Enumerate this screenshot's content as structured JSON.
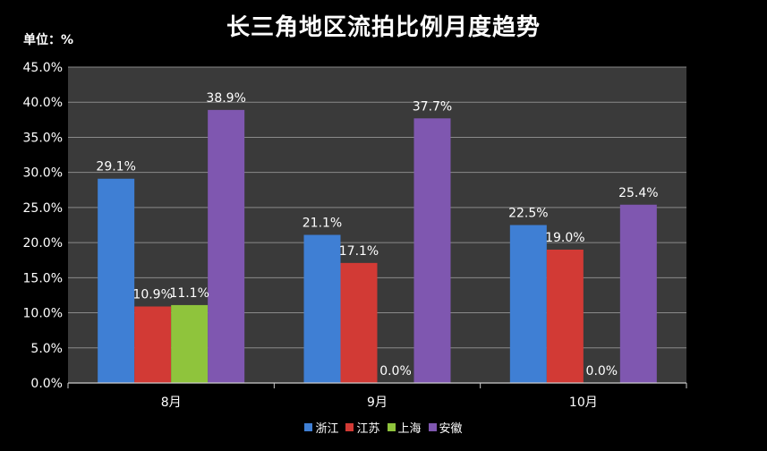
{
  "chart_data": {
    "type": "bar",
    "title": "长三角地区流拍比例月度趋势",
    "unit_label": "单位：%",
    "categories": [
      "8月",
      "9月",
      "10月"
    ],
    "series": [
      {
        "name": "浙江",
        "color": "#3f7fd4",
        "values": [
          29.1,
          21.1,
          22.5
        ],
        "labels": [
          "29.1%",
          "21.1%",
          "22.5%"
        ]
      },
      {
        "name": "江苏",
        "color": "#d23a35",
        "values": [
          10.9,
          17.1,
          19.0
        ],
        "labels": [
          "10.9%",
          "17.1%",
          "19.0%"
        ]
      },
      {
        "name": "上海",
        "color": "#8fc43c",
        "values": [
          11.1,
          0.0,
          0.0
        ],
        "labels": [
          "11.1%",
          "0.0%",
          "0.0%"
        ]
      },
      {
        "name": "安徽",
        "color": "#7f57b0",
        "values": [
          38.9,
          37.7,
          25.4
        ],
        "labels": [
          "38.9%",
          "37.7%",
          "25.4%"
        ]
      }
    ],
    "ylim": [
      0,
      45
    ],
    "yticks": [
      "0.0%",
      "5.0%",
      "10.0%",
      "15.0%",
      "20.0%",
      "25.0%",
      "30.0%",
      "35.0%",
      "40.0%",
      "45.0%"
    ],
    "grid": true,
    "legend_position": "bottom",
    "plot_background": "#3a3a3a"
  }
}
